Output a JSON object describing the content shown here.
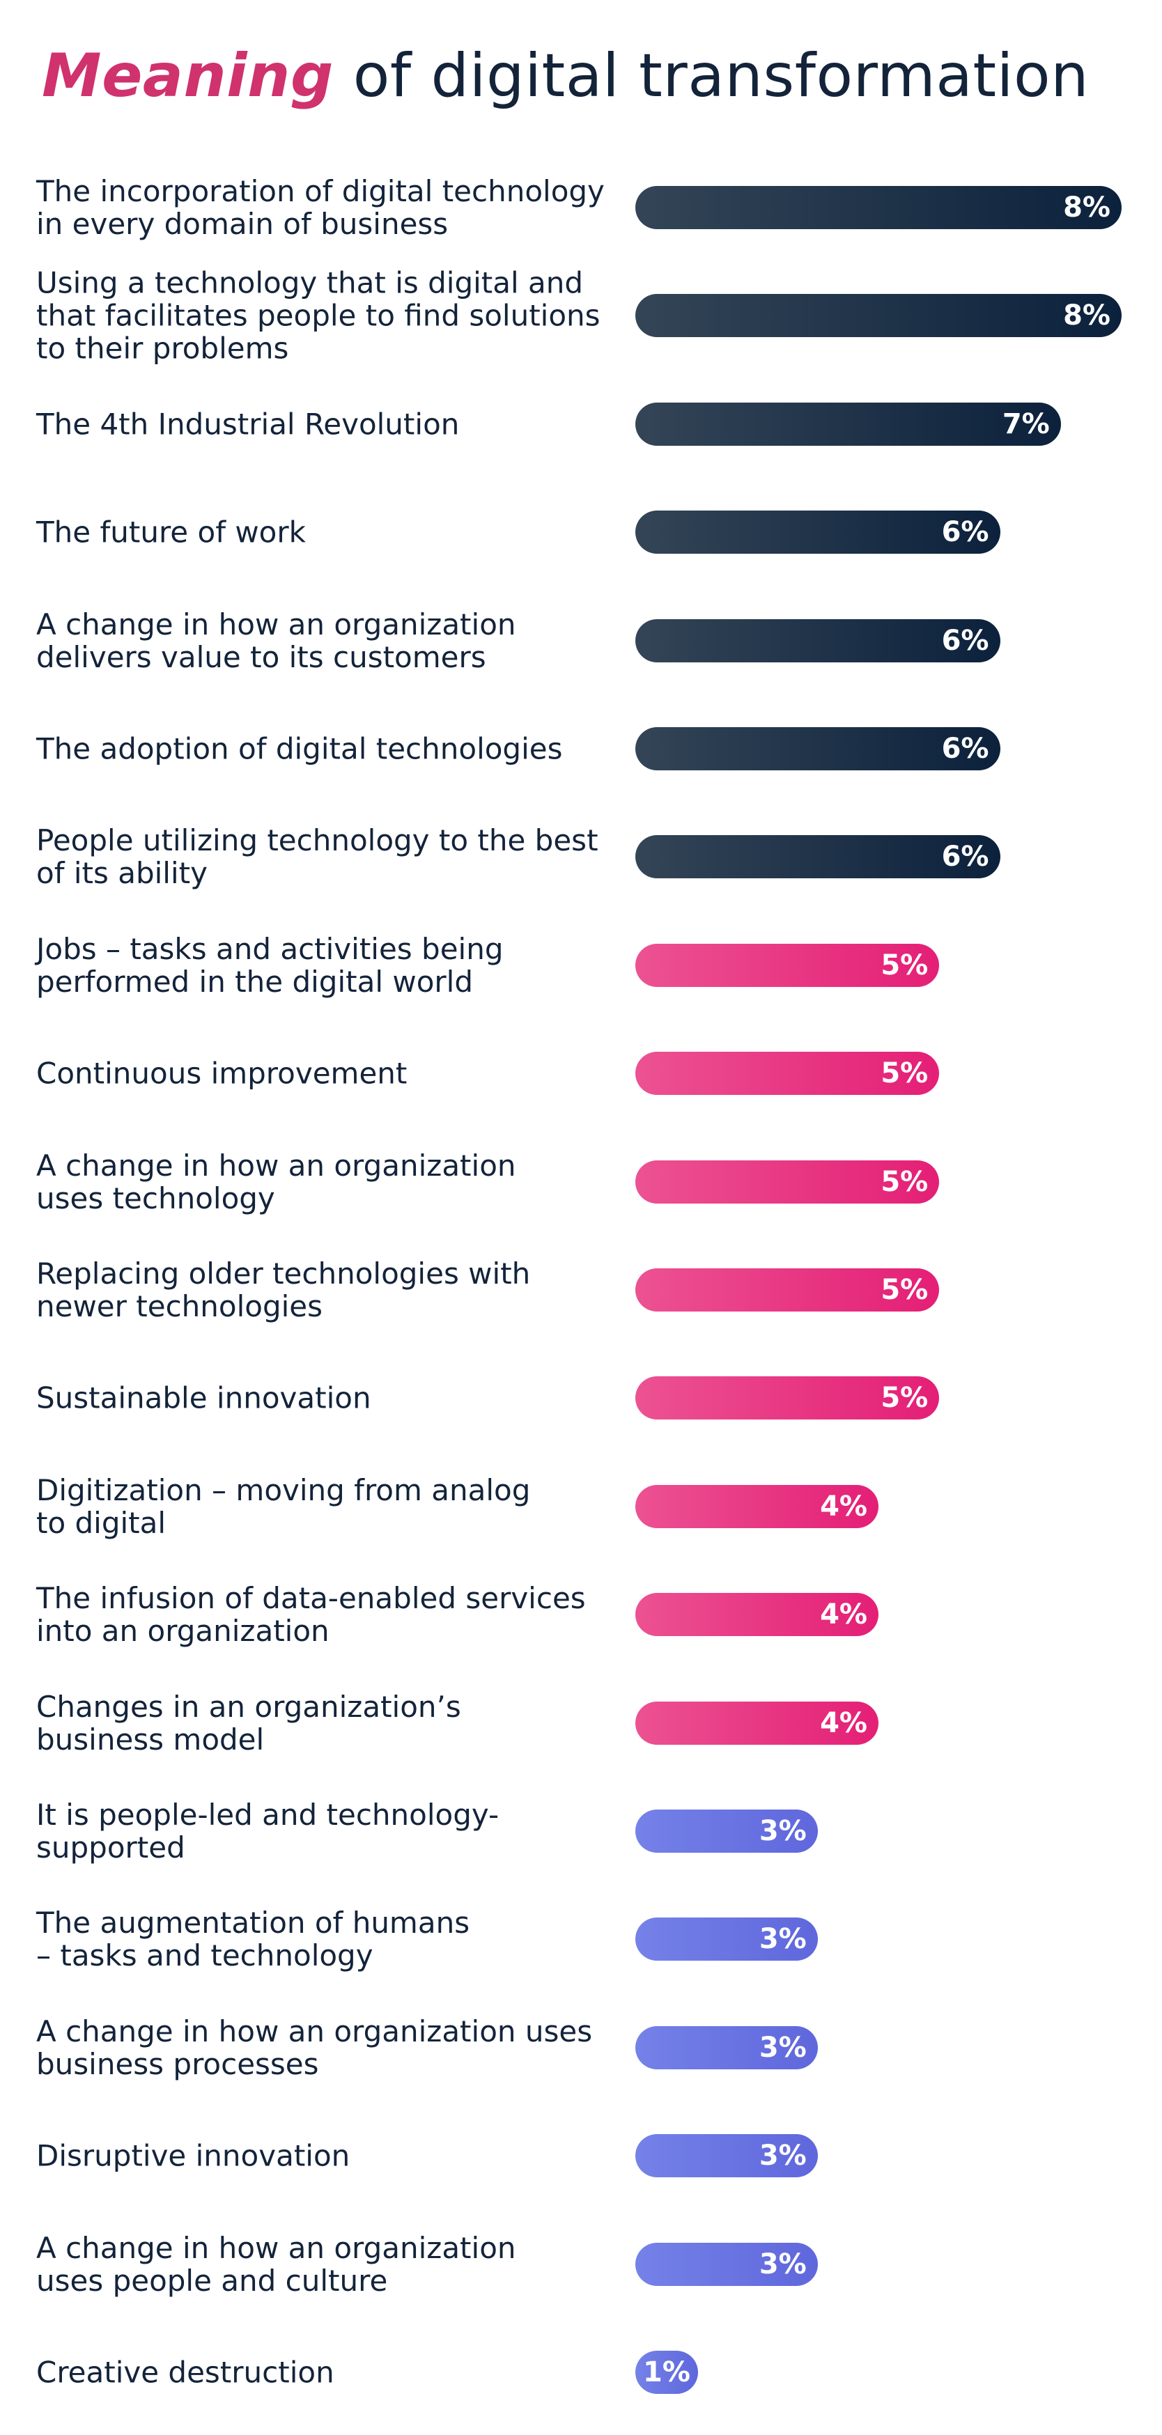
{
  "title": {
    "accent": "Meaning",
    "rest": " of digital transformation"
  },
  "colors": {
    "title_accent": "#d0326e",
    "text": "#13233a",
    "dark_start": "#334556",
    "dark_end": "#0c213c",
    "pink_start": "#ec5292",
    "pink_end": "#e41f76",
    "purple_start": "#7582e8",
    "purple_end": "#5f67dc"
  },
  "chart_data": {
    "type": "bar",
    "orientation": "horizontal",
    "title": "Meaning of digital transformation",
    "unit": "%",
    "xlim": [
      0,
      8
    ],
    "categories": [
      "The incorporation of digital technology\nin every domain of business",
      "Using a technology that is digital and\nthat facilitates people to find solutions\nto their problems",
      "The 4th Industrial Revolution",
      "The future of work",
      "A change in how an organization\ndelivers value to its customers",
      "The adoption of digital technologies",
      "People utilizing technology to the best\nof its ability",
      "Jobs – tasks and activities being\nperformed in the digital world",
      "Continuous improvement",
      "A change in how an organization\nuses technology",
      "Replacing older technologies with\nnewer technologies",
      "Sustainable innovation",
      "Digitization – moving from analog\nto digital",
      "The infusion of data-enabled services\ninto an organization",
      "Changes in an organization’s\nbusiness model",
      "It is people-led and technology-supported",
      "The augmentation of humans\n– tasks and technology",
      "A change in how an organization uses\nbusiness processes",
      "Disruptive innovation",
      "A change in how an organization\nuses people and culture",
      "Creative destruction"
    ],
    "values": [
      8,
      8,
      7,
      6,
      6,
      6,
      6,
      5,
      5,
      5,
      5,
      5,
      4,
      4,
      4,
      3,
      3,
      3,
      3,
      3,
      1
    ],
    "value_labels": [
      "8%",
      "8%",
      "7%",
      "6%",
      "6%",
      "6%",
      "6%",
      "5%",
      "5%",
      "5%",
      "5%",
      "5%",
      "4%",
      "4%",
      "4%",
      "3%",
      "3%",
      "3%",
      "3%",
      "3%",
      "1%"
    ],
    "color_groups": [
      "dark",
      "dark",
      "dark",
      "dark",
      "dark",
      "dark",
      "dark",
      "pink",
      "pink",
      "pink",
      "pink",
      "pink",
      "pink",
      "pink",
      "pink",
      "purple",
      "purple",
      "purple",
      "purple",
      "purple",
      "purple"
    ]
  }
}
